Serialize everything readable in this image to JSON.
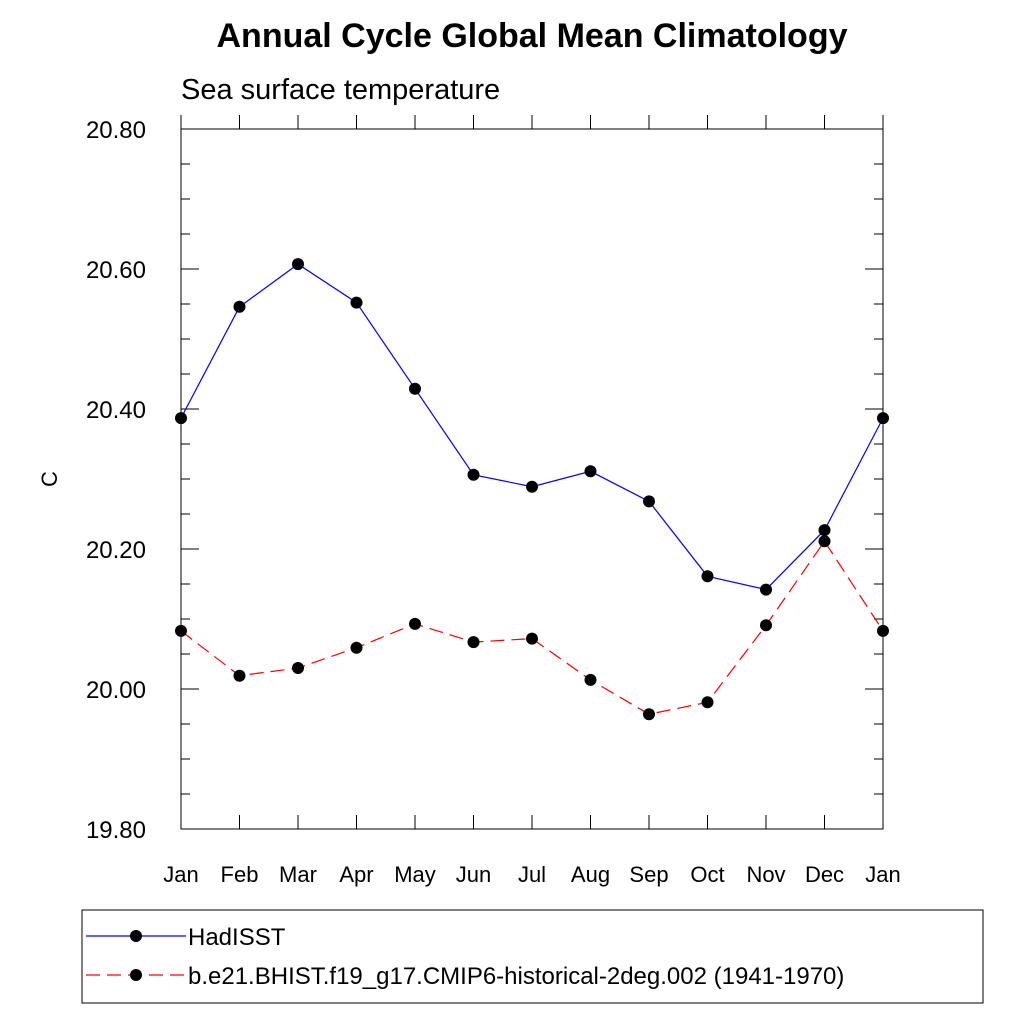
{
  "chart_data": {
    "type": "line",
    "title": "Annual Cycle Global Mean Climatology",
    "subtitle": "Sea surface temperature",
    "xlabel": "",
    "ylabel": "C",
    "categories": [
      "Jan",
      "Feb",
      "Mar",
      "Apr",
      "May",
      "Jun",
      "Jul",
      "Aug",
      "Sep",
      "Oct",
      "Nov",
      "Dec",
      "Jan"
    ],
    "ylim": [
      19.8,
      20.8
    ],
    "yticks": [
      "20.80",
      "20.60",
      "20.40",
      "20.20",
      "20.00",
      "19.80"
    ],
    "ytick_values": [
      20.8,
      20.6,
      20.4,
      20.2,
      20.0,
      19.8
    ],
    "grid": false,
    "legend_position": "bottom",
    "series": [
      {
        "name": "HadISST",
        "color": "#0000ff",
        "dash": "solid",
        "marker": "filled-circle",
        "values": [
          20.387,
          20.546,
          20.607,
          20.552,
          20.429,
          20.306,
          20.289,
          20.311,
          20.268,
          20.161,
          20.142,
          20.227,
          20.387
        ]
      },
      {
        "name": "b.e21.BHIST.f19_g17.CMIP6-historical-2deg.002 (1941-1970)",
        "color": "#ff0000",
        "dash": "dashed",
        "marker": "filled-circle",
        "values": [
          20.083,
          20.019,
          20.03,
          20.059,
          20.093,
          20.067,
          20.072,
          20.013,
          19.964,
          19.981,
          20.091,
          20.211,
          20.083
        ]
      }
    ]
  }
}
